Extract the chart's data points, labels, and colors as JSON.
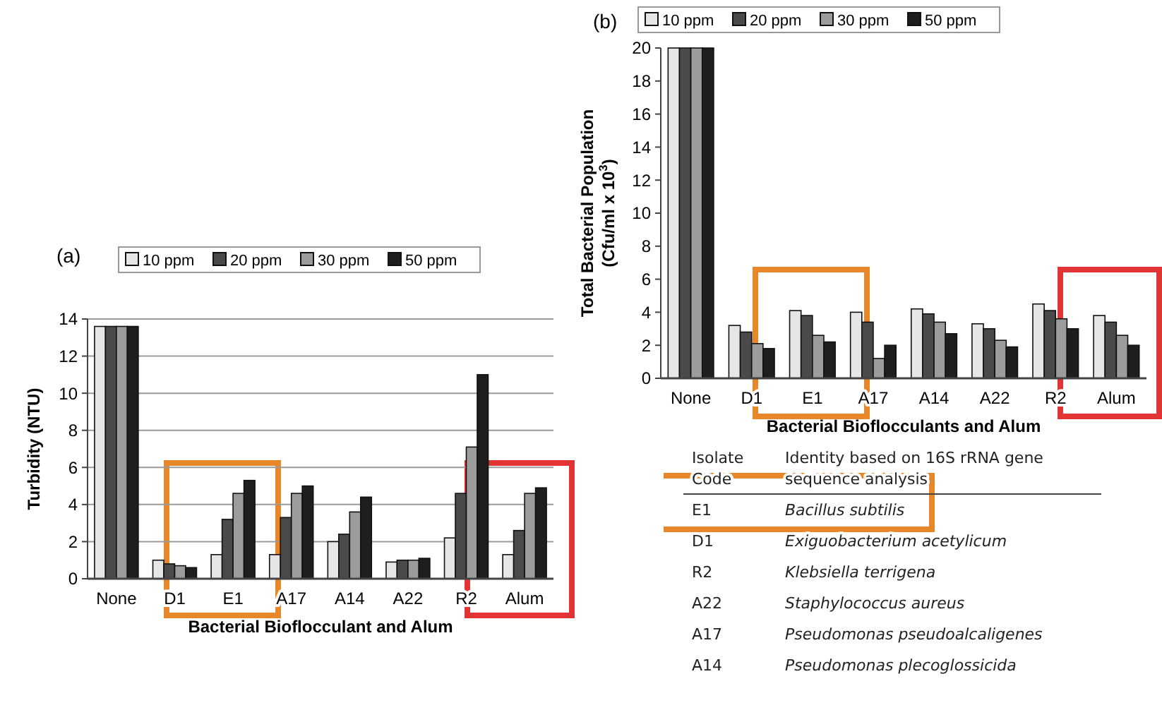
{
  "chart_data": [
    {
      "type": "bar",
      "title": "(a)",
      "xlabel": "Bacterial Bioflocculant and Alum",
      "ylabel": "Turbidity (NTU)",
      "categories": [
        "None",
        "D1",
        "E1",
        "A17",
        "A14",
        "A22",
        "R2",
        "Alum"
      ],
      "ylim": [
        0,
        14
      ],
      "yticks": [
        0,
        2,
        4,
        6,
        8,
        10,
        12,
        14
      ],
      "grid": "y",
      "legend": "top",
      "series": [
        {
          "name": "10 ppm",
          "color": "#e6e6e6",
          "values": [
            13.6,
            1.0,
            1.3,
            1.3,
            2.0,
            0.9,
            2.2,
            1.3
          ]
        },
        {
          "name": "20 ppm",
          "color": "#4a4a4a",
          "values": [
            13.6,
            0.8,
            3.2,
            3.3,
            2.4,
            1.0,
            4.6,
            2.6
          ]
        },
        {
          "name": "30 ppm",
          "color": "#9c9c9c",
          "values": [
            13.6,
            0.7,
            4.6,
            4.6,
            3.6,
            1.0,
            7.1,
            4.6
          ]
        },
        {
          "name": "50 ppm",
          "color": "#1e1e1e",
          "values": [
            13.6,
            0.6,
            5.3,
            5.0,
            4.4,
            1.1,
            11.0,
            4.9
          ]
        }
      ]
    },
    {
      "type": "bar",
      "title": "(b)",
      "xlabel": "Bacterial Bioflocculants and Alum",
      "ylabel": "Total Bacterial Population\n(Cfu/ml x 10$^{3}$)",
      "categories": [
        "None",
        "D1",
        "E1",
        "A17",
        "A14",
        "A22",
        "R2",
        "Alum"
      ],
      "ylim": [
        0,
        20
      ],
      "yticks": [
        0,
        2,
        4,
        6,
        8,
        10,
        12,
        14,
        16,
        18,
        20
      ],
      "grid": false,
      "legend": "top",
      "series": [
        {
          "name": "10 ppm",
          "color": "#e6e6e6",
          "values": [
            20,
            3.2,
            4.1,
            4.0,
            4.2,
            3.3,
            4.5,
            3.8
          ]
        },
        {
          "name": "20 ppm",
          "color": "#4a4a4a",
          "values": [
            20,
            2.8,
            3.8,
            3.4,
            3.9,
            3.0,
            4.1,
            3.4
          ]
        },
        {
          "name": "30 ppm",
          "color": "#9c9c9c",
          "values": [
            20,
            2.1,
            2.6,
            1.2,
            3.4,
            2.3,
            3.6,
            2.6
          ]
        },
        {
          "name": "50 ppm",
          "color": "#1e1e1e",
          "values": [
            20,
            1.8,
            2.2,
            2.0,
            2.7,
            1.9,
            3.0,
            2.0
          ]
        }
      ]
    },
    {
      "type": "other",
      "annotations": [
        "Isolate\nCode",
        "Identity based on 16S rRNA gene\nsequence analysis",
        "E1",
        "Bacillus subtilis",
        "D1",
        "Exiguobacterium acetylicum",
        "R2",
        "Klebsiella terrigena",
        "A22",
        "Staphylococcus aureus",
        "A17",
        "Pseudomonas pseudoalcaligenes",
        "A14",
        "Pseudomonas plecoglossicida"
      ]
    }
  ]
}
